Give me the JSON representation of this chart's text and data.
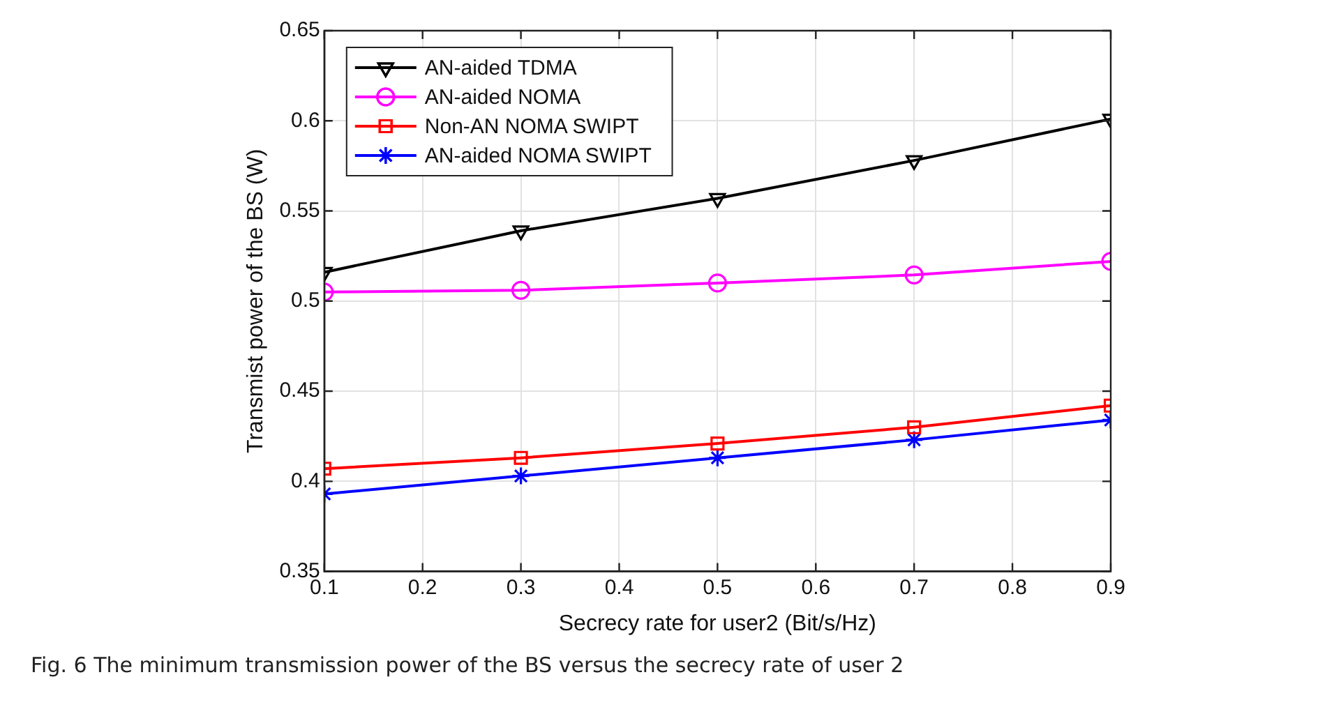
{
  "chart_data": {
    "type": "line",
    "xlabel": "Secrecy rate for user2 (Bit/s/Hz)",
    "ylabel": "Transmist power of the BS (W)",
    "x": [
      0.1,
      0.3,
      0.5,
      0.7,
      0.9
    ],
    "xlim": [
      0.1,
      0.9
    ],
    "xticks": [
      0.1,
      0.2,
      0.3,
      0.4,
      0.5,
      0.6,
      0.7,
      0.8,
      0.9
    ],
    "ylim": [
      0.35,
      0.65
    ],
    "yticks": [
      0.35,
      0.4,
      0.45,
      0.5,
      0.55,
      0.6,
      0.65
    ],
    "grid": true,
    "legend": "top left",
    "line_style": "solid",
    "series": [
      {
        "name": "AN-aided TDMA",
        "color": "#000000",
        "marker": "triangle",
        "values": [
          0.516,
          0.539,
          0.557,
          0.578,
          0.601
        ]
      },
      {
        "name": "AN-aided NOMA",
        "color": "#ff00ff",
        "marker": "circle",
        "values": [
          0.505,
          0.506,
          0.51,
          0.5145,
          0.522
        ]
      },
      {
        "name": "Non-AN NOMA SWIPT",
        "color": "#ff0000",
        "marker": "square",
        "values": [
          0.407,
          0.413,
          0.421,
          0.43,
          0.442
        ]
      },
      {
        "name": "AN-aided NOMA SWIPT",
        "color": "#0000ff",
        "marker": "cross",
        "values": [
          0.393,
          0.403,
          0.413,
          0.423,
          0.434
        ]
      }
    ],
    "annotations": [
      "Fig. 6  The minimum transmission power of the BS versus the secrecy rate of user 2"
    ]
  }
}
